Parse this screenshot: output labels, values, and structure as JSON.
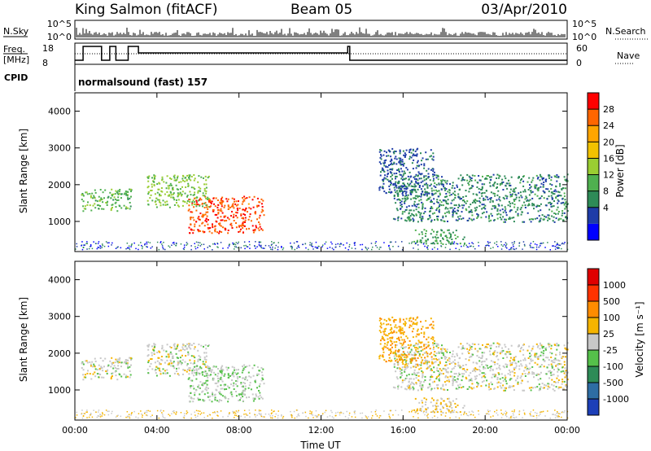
{
  "header": {
    "radar": "King Salmon (fitACF)",
    "beam": "Beam 05",
    "date": "03/Apr/2010"
  },
  "top_panels": {
    "nsky_label": "N.Sky",
    "nsky_ticks": [
      "10^5",
      "10^0"
    ],
    "nsearch_label": "N.Search",
    "nsearch_ticks": [
      "10^5",
      "10^0"
    ],
    "freq_label_1": "Freq.",
    "freq_label_2": "[MHz]",
    "freq_ticks": [
      "18",
      "8"
    ],
    "nave_label": "Nave",
    "nave_ticks": [
      "60",
      "0"
    ],
    "cpid_label": "CPID",
    "cpid_text": "normalsound (fast) 157"
  },
  "power_colorbar": {
    "title": "Power [dB]",
    "labels": [
      "28",
      "24",
      "20",
      "16",
      "12",
      "8",
      "4"
    ],
    "colors": [
      "#0000ff",
      "#1e3ca8",
      "#2e8b57",
      "#4fb04f",
      "#9acd32",
      "#f2c200",
      "#ffa500",
      "#ff6600",
      "#ff0000"
    ]
  },
  "velocity_colorbar": {
    "title": "Velocity [m s⁻¹]",
    "labels": [
      "1000",
      "500",
      "100",
      "25",
      "-25",
      "-100",
      "-500",
      "-1000"
    ],
    "colors": [
      "#1c3fb8",
      "#2e6da4",
      "#2e8b57",
      "#55c04a",
      "#c8c8c8",
      "#f5b400",
      "#ff8c00",
      "#ff3300",
      "#e00000"
    ]
  },
  "chart_data": [
    {
      "type": "heatmap",
      "name": "power",
      "ylabel": "Slant Range [km]",
      "xlabel": "",
      "x_ticks": [
        "00:00",
        "04:00",
        "08:00",
        "12:00",
        "16:00",
        "20:00",
        "00:00"
      ],
      "y_ticks": [
        "1000",
        "2000",
        "3000",
        "4000"
      ],
      "xlim": [
        0,
        24
      ],
      "ylim": [
        180,
        4500
      ],
      "colorbar_range": [
        0,
        30
      ],
      "echo_regions": [
        {
          "t0": 5.5,
          "t1": 9.2,
          "r0": 700,
          "r1": 1700,
          "value": 26
        },
        {
          "t0": 3.5,
          "t1": 6.5,
          "r0": 1400,
          "r1": 2300,
          "value": 14
        },
        {
          "t0": 0.3,
          "t1": 2.8,
          "r0": 1300,
          "r1": 1900,
          "value": 12
        },
        {
          "t0": 15.5,
          "t1": 24,
          "r0": 1000,
          "r1": 2300,
          "value": 8
        },
        {
          "t0": 14.8,
          "t1": 17.5,
          "r0": 1700,
          "r1": 3000,
          "value": 6
        },
        {
          "t0": 16.5,
          "t1": 19.0,
          "r0": 400,
          "r1": 800,
          "value": 10
        }
      ]
    },
    {
      "type": "heatmap",
      "name": "velocity",
      "ylabel": "Slant Range [km]",
      "xlabel": "Time UT",
      "x_ticks": [
        "00:00",
        "04:00",
        "08:00",
        "12:00",
        "16:00",
        "20:00",
        "00:00"
      ],
      "y_ticks": [
        "1000",
        "2000",
        "3000",
        "4000"
      ],
      "xlim": [
        0,
        24
      ],
      "ylim": [
        180,
        4500
      ],
      "colorbar_range": [
        -1000,
        1000
      ],
      "echo_regions": [
        {
          "t0": 5.5,
          "t1": 9.2,
          "r0": 700,
          "r1": 1700,
          "value": -80
        },
        {
          "t0": 3.5,
          "t1": 6.5,
          "r0": 1400,
          "r1": 2300,
          "value": 0
        },
        {
          "t0": 0.3,
          "t1": 2.8,
          "r0": 1300,
          "r1": 1900,
          "value": 0
        },
        {
          "t0": 15.5,
          "t1": 24,
          "r0": 1000,
          "r1": 2300,
          "value": 0
        },
        {
          "t0": 14.8,
          "t1": 17.5,
          "r0": 1700,
          "r1": 3000,
          "value": 300
        },
        {
          "t0": 16.5,
          "t1": 19.0,
          "r0": 400,
          "r1": 800,
          "value": 80
        }
      ]
    }
  ]
}
